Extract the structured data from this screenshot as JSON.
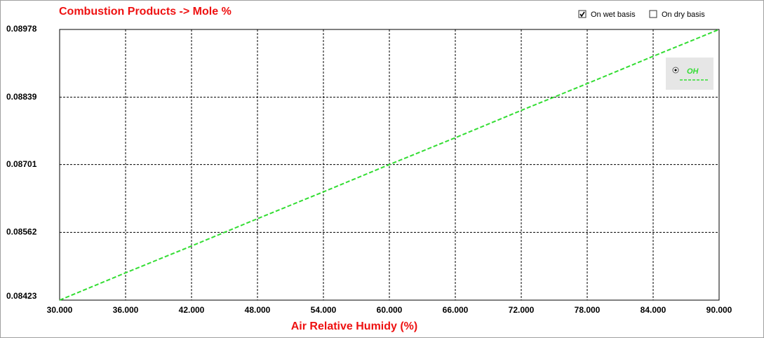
{
  "chart_data": {
    "type": "line",
    "title": "Combustion Products -> Mole %",
    "x_label": "Air Relative Humidy (%)",
    "x": [
      30,
      36,
      42,
      48,
      54,
      60,
      66,
      72,
      78,
      84,
      90
    ],
    "series": [
      {
        "name": "OH",
        "color": "#33dd33",
        "line_style": "dashed",
        "values": [
          0.08423,
          0.08479,
          0.08534,
          0.0859,
          0.08645,
          0.08701,
          0.08756,
          0.08812,
          0.08867,
          0.08923,
          0.08978
        ]
      }
    ],
    "xlim": [
      30,
      90
    ],
    "xticks": [
      {
        "value": 30,
        "label": "30.000"
      },
      {
        "value": 36,
        "label": "36.000"
      },
      {
        "value": 42,
        "label": "42.000"
      },
      {
        "value": 48,
        "label": "48.000"
      },
      {
        "value": 54,
        "label": "54.000"
      },
      {
        "value": 60,
        "label": "60.000"
      },
      {
        "value": 66,
        "label": "66.000"
      },
      {
        "value": 72,
        "label": "72.000"
      },
      {
        "value": 78,
        "label": "78.000"
      },
      {
        "value": 84,
        "label": "84.000"
      },
      {
        "value": 90,
        "label": "90.000"
      }
    ],
    "ylim": [
      0.08423,
      0.08978
    ],
    "yticks": [
      0.08423,
      0.08562,
      0.08701,
      0.08839,
      0.08978
    ],
    "grid": true,
    "legend": "right"
  },
  "controls": [
    {
      "label": "On wet basis",
      "checked": true
    },
    {
      "label": "On dry basis",
      "checked": false
    }
  ]
}
